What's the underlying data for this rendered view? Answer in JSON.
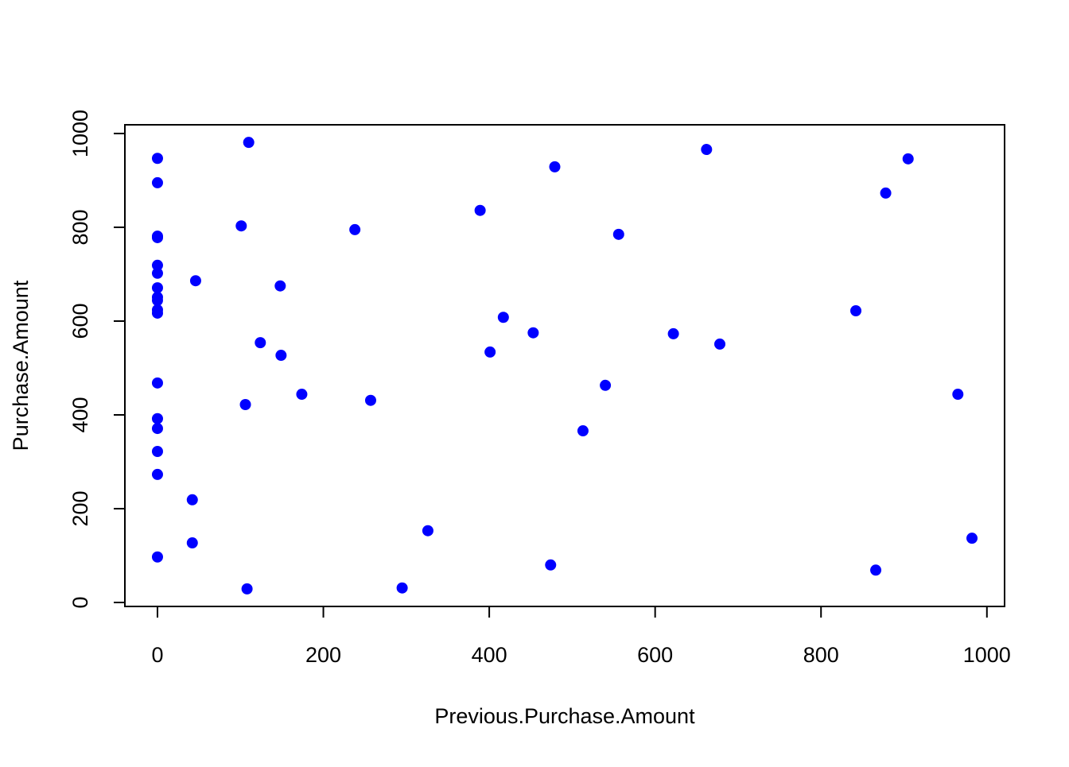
{
  "chart_data": {
    "type": "scatter",
    "xlabel": "Previous.Purchase.Amount",
    "ylabel": "Purchase.Amount",
    "x": [
      0,
      0,
      0,
      0,
      0,
      0,
      0,
      0,
      0,
      0,
      0,
      0,
      0,
      0,
      0,
      0,
      0,
      110,
      101,
      46,
      148,
      124,
      149,
      174,
      106,
      42,
      42,
      108,
      238,
      257,
      326,
      295,
      389,
      401,
      417,
      453,
      479,
      474,
      513,
      540,
      556,
      622,
      662,
      678,
      842,
      878,
      905,
      866,
      965,
      982
    ],
    "series": [
      {
        "color": "#0000ff",
        "values": [
          947,
          895,
          781,
          778,
          719,
          702,
          671,
          651,
          644,
          624,
          617,
          468,
          392,
          371,
          322,
          273,
          97,
          981,
          803,
          686,
          675,
          554,
          527,
          444,
          422,
          219,
          127,
          29,
          795,
          431,
          153,
          31,
          836,
          534,
          608,
          575,
          929,
          80,
          366,
          463,
          785,
          573,
          966,
          551,
          622,
          873,
          946,
          69,
          444,
          137
        ]
      }
    ],
    "xlim": [
      -39.3,
      1021.3
    ],
    "ylim": [
      -8.5,
      1018.6
    ],
    "xticks": [
      0,
      200,
      400,
      600,
      800,
      1000
    ],
    "yticks": [
      0,
      200,
      400,
      600,
      800,
      1000
    ]
  }
}
